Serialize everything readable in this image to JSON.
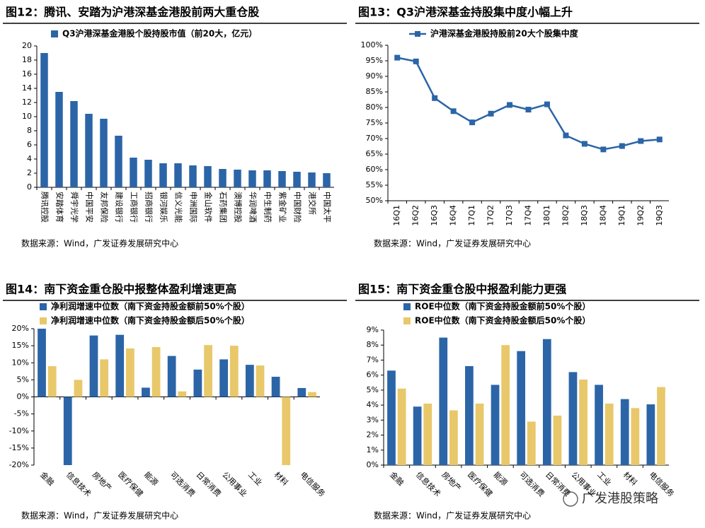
{
  "chart_data": [
    {
      "type": "bar",
      "title": "图12：腾讯、安踏为沪港深基金港股前两大重仓股",
      "categories": [
        "腾讯控股",
        "安踏体育",
        "舜宇光学",
        "中国平安",
        "友邦保险",
        "建设银行",
        "工商银行",
        "招商银行",
        "银河娱乐",
        "信义光能",
        "申洲国际",
        "金山软件",
        "石药集团",
        "澳博控股",
        "华润啤酒",
        "中生制药",
        "紫金矿业",
        "中国财险",
        "港交所",
        "中国太平"
      ],
      "series": [
        {
          "name": "Q3沪港深基金港股个股持股市值（前20大，亿元）",
          "color": "#2b65a7",
          "values": [
            19.0,
            13.5,
            12.2,
            10.4,
            9.7,
            7.3,
            4.2,
            3.9,
            3.4,
            3.4,
            3.1,
            3.0,
            2.6,
            2.5,
            2.4,
            2.4,
            2.3,
            2.2,
            2.1,
            2.0
          ]
        }
      ],
      "ylim": [
        0,
        20
      ],
      "yticks": [
        0,
        2,
        4,
        6,
        8,
        10,
        12,
        14,
        16,
        18,
        20
      ],
      "source": "数据来源：Wind，广发证券发展研究中心"
    },
    {
      "type": "line",
      "title": "图13：Q3沪港深基金持股集中度小幅上升",
      "categories": [
        "16Q1",
        "16Q2",
        "16Q3",
        "16Q4",
        "17Q1",
        "17Q2",
        "17Q3",
        "17Q4",
        "18Q1",
        "18Q2",
        "18Q3",
        "18Q4",
        "19Q1",
        "19Q2",
        "19Q3"
      ],
      "series": [
        {
          "name": "沪港深基金港股持股前20大个股集中度",
          "color": "#2b65a7",
          "values": [
            96.0,
            94.8,
            83.0,
            78.8,
            75.2,
            78.0,
            80.8,
            79.3,
            81.0,
            71.0,
            68.3,
            66.5,
            67.6,
            69.2,
            69.7
          ]
        }
      ],
      "ylim": [
        50,
        100
      ],
      "yticks": [
        {
          "value": 50,
          "label": "50%"
        },
        {
          "value": 55,
          "label": "55%"
        },
        {
          "value": 60,
          "label": "60%"
        },
        {
          "value": 65,
          "label": "65%"
        },
        {
          "value": 70,
          "label": "70%"
        },
        {
          "value": 75,
          "label": "75%"
        },
        {
          "value": 80,
          "label": "80%"
        },
        {
          "value": 85,
          "label": "85%"
        },
        {
          "value": 90,
          "label": "90%"
        },
        {
          "value": 95,
          "label": "95%"
        },
        {
          "value": 100,
          "label": "100%"
        }
      ],
      "source": "数据来源：Wind，广发证券发展研究中心"
    },
    {
      "type": "bar",
      "title": "图14：南下资金重仓股中报整体盈利增速更高",
      "categories": [
        "金融",
        "信息技术",
        "房地产",
        "医疗保健",
        "能源",
        "可选消费",
        "日常消费",
        "公用事业",
        "工业",
        "材料",
        "电信服务"
      ],
      "series": [
        {
          "name": "净利润增速中位数（南下资金持股金额前50%个股）",
          "color": "#2b65a7",
          "values": [
            20.0,
            -20.0,
            18.0,
            18.2,
            2.7,
            12.0,
            8.0,
            11.0,
            9.4,
            5.9,
            2.6
          ]
        },
        {
          "name": "净利润增速中位数（南下资金持股金额后50%个股）",
          "color": "#e8c86a",
          "values": [
            9.0,
            5.0,
            11.0,
            14.2,
            14.6,
            1.6,
            15.2,
            15.0,
            9.2,
            -20.0,
            1.4
          ]
        }
      ],
      "ylim": [
        -20,
        20
      ],
      "yticks": [
        {
          "value": -20,
          "label": "-20%"
        },
        {
          "value": -15,
          "label": "-15%"
        },
        {
          "value": -10,
          "label": "-10%"
        },
        {
          "value": -5,
          "label": "-5%"
        },
        {
          "value": 0,
          "label": "0%"
        },
        {
          "value": 5,
          "label": "5%"
        },
        {
          "value": 10,
          "label": "10%"
        },
        {
          "value": 15,
          "label": "15%"
        },
        {
          "value": 20,
          "label": "20%"
        }
      ],
      "source": "数据来源：Wind，广发证券发展研究中心"
    },
    {
      "type": "bar",
      "title": "图15：南下资金重仓股中报盈利能力更强",
      "categories": [
        "金融",
        "信息技术",
        "房地产",
        "医疗保健",
        "能源",
        "可选消费",
        "日常消费",
        "公用事业",
        "工业",
        "材料",
        "电信服务"
      ],
      "series": [
        {
          "name": "ROE中位数（南下资金持股金额前50%个股）",
          "color": "#2b65a7",
          "values": [
            6.3,
            3.9,
            8.5,
            6.6,
            5.35,
            7.6,
            8.4,
            6.2,
            5.35,
            4.4,
            4.05
          ]
        },
        {
          "name": "ROE中位数（南下资金持股金额后50%个股）",
          "color": "#e8c86a",
          "values": [
            5.1,
            4.1,
            3.65,
            4.1,
            8.0,
            2.9,
            3.3,
            5.7,
            4.1,
            3.8,
            5.2
          ]
        }
      ],
      "ylim": [
        0,
        9
      ],
      "yticks": [
        {
          "value": 0,
          "label": "0%"
        },
        {
          "value": 1,
          "label": "1%"
        },
        {
          "value": 2,
          "label": "2%"
        },
        {
          "value": 3,
          "label": "3%"
        },
        {
          "value": 4,
          "label": "4%"
        },
        {
          "value": 5,
          "label": "5%"
        },
        {
          "value": 6,
          "label": "6%"
        },
        {
          "value": 7,
          "label": "7%"
        },
        {
          "value": 8,
          "label": "8%"
        },
        {
          "value": 9,
          "label": "9%"
        }
      ],
      "source": "数据来源：Wind，广发证券发展研究中心"
    }
  ],
  "watermark": "广发港股策略"
}
